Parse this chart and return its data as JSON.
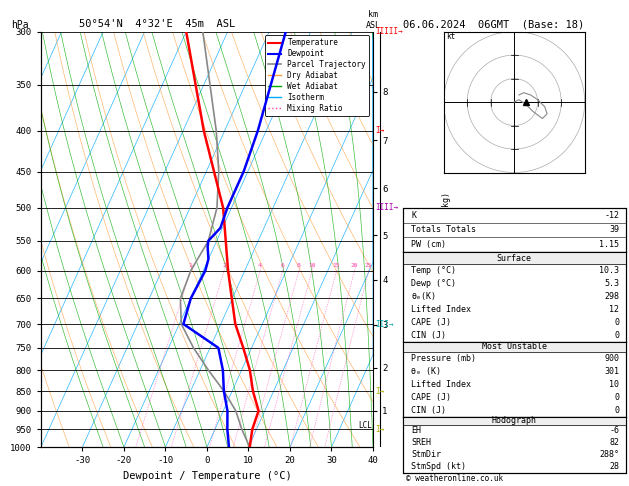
{
  "title_left": "50°54'N  4°32'E  45m  ASL",
  "title_right": "06.06.2024  06GMT  (Base: 18)",
  "xlabel": "Dewpoint / Temperature (°C)",
  "pressure_levels": [
    300,
    350,
    400,
    450,
    500,
    550,
    600,
    650,
    700,
    750,
    800,
    850,
    900,
    950,
    1000
  ],
  "xlim": [
    -40,
    40
  ],
  "pmin": 300,
  "pmax": 1000,
  "skew_factor": 45,
  "temp_profile": {
    "pressure": [
      1000,
      950,
      900,
      850,
      800,
      750,
      700,
      600,
      500,
      400,
      300
    ],
    "temp": [
      10.3,
      9.0,
      8.5,
      5.0,
      2.0,
      -2.0,
      -6.5,
      -14.0,
      -22.0,
      -35.0,
      -50.0
    ]
  },
  "dewpoint_profile": {
    "pressure": [
      1000,
      950,
      900,
      850,
      800,
      750,
      700,
      650,
      600,
      580,
      560,
      550,
      530,
      500,
      450,
      400,
      300
    ],
    "dewp": [
      5.3,
      3.0,
      1.0,
      -2.0,
      -4.5,
      -8.0,
      -19.0,
      -20.0,
      -19.5,
      -20.0,
      -21.5,
      -22.0,
      -20.5,
      -21.0,
      -21.0,
      -22.0,
      -26.0
    ]
  },
  "parcel_profile": {
    "pressure": [
      1000,
      950,
      900,
      850,
      800,
      750,
      700,
      650,
      600,
      550,
      500,
      450,
      400,
      350,
      300
    ],
    "temp": [
      10.3,
      6.5,
      3.0,
      -2.0,
      -8.0,
      -14.0,
      -19.5,
      -22.5,
      -23.0,
      -22.0,
      -23.5,
      -27.0,
      -32.0,
      -38.5,
      -46.0
    ]
  },
  "surface_data": {
    "Temp (C)": 10.3,
    "Dewp (C)": 5.3,
    "theta_e_K": 298,
    "Lifted Index": 12,
    "CAPE_J": 0,
    "CIN_J": 0
  },
  "most_unstable": {
    "Pressure_mb": 900,
    "theta_e_K": 301,
    "Lifted Index": 10,
    "CAPE_J": 0,
    "CIN_J": 0
  },
  "indices": {
    "K": -12,
    "Totals Totals": 39,
    "PW (cm)": 1.15
  },
  "hodograph": {
    "EH": -6,
    "SREH": 82,
    "StmDir": "288°",
    "StmSpd_kt": 28
  },
  "mixing_ratios": [
    1,
    2,
    4,
    6,
    8,
    10,
    15,
    20,
    25
  ],
  "lcl_pressure": 950,
  "km_ticks": {
    "8": 357,
    "7": 411,
    "6": 472,
    "5": 541,
    "4": 616,
    "3": 701,
    "2": 795,
    "1": 900
  },
  "right_markers": [
    {
      "pressure": 300,
      "color": "#FF0000",
      "symbol": "IIIII"
    },
    {
      "pressure": 400,
      "color": "#FF0000",
      "symbol": "I"
    },
    {
      "pressure": 500,
      "color": "#AA00AA",
      "symbol": "IIII"
    },
    {
      "pressure": 700,
      "color": "#00AAAA",
      "symbol": "III"
    },
    {
      "pressure": 850,
      "color": "#AAAA00",
      "symbol": "I"
    },
    {
      "pressure": 950,
      "color": "#AAAA00",
      "symbol": "I"
    }
  ],
  "colors": {
    "temperature": "#FF0000",
    "dewpoint": "#0000FF",
    "parcel": "#888888",
    "dry_adiabat": "#FFA040",
    "wet_adiabat": "#00AA00",
    "isotherm": "#00AAFF",
    "mixing_ratio": "#FF44AA",
    "background": "#FFFFFF",
    "grid": "#000000"
  }
}
